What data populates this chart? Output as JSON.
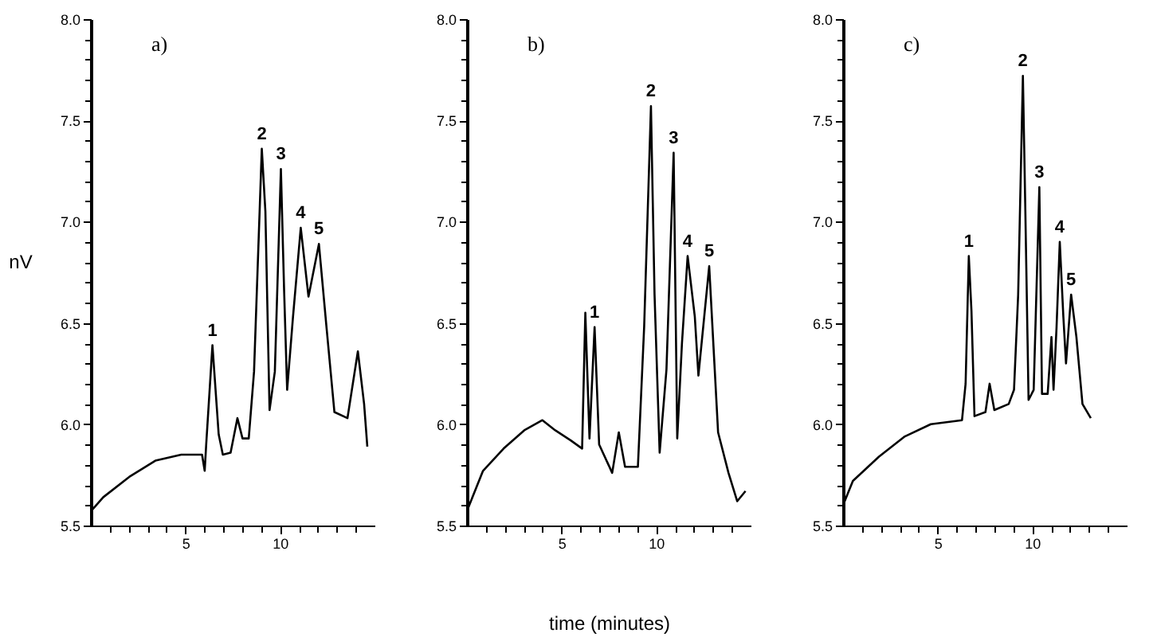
{
  "chart_data": [
    {
      "type": "line",
      "title": "a)",
      "ylabel": "nV",
      "x": [
        0,
        0.66,
        2.03,
        3.41,
        4.78,
        5.88,
        6.02,
        6.1,
        6.43,
        6.76,
        6.98,
        7.39,
        7.75,
        8.02,
        8.35,
        8.63,
        9.04,
        9.23,
        9.45,
        9.73,
        10.05,
        10.22,
        10.38,
        10.69,
        11.1,
        11.51,
        12.06,
        12.47,
        12.88,
        13.57,
        14.12,
        14.45,
        14.62
      ],
      "series": [
        {
          "color": "#000000",
          "values": [
            5.57,
            5.64,
            5.74,
            5.82,
            5.85,
            5.85,
            5.77,
            5.9,
            6.39,
            5.95,
            5.85,
            5.86,
            6.03,
            5.93,
            5.93,
            6.26,
            7.36,
            7.05,
            6.07,
            6.26,
            7.26,
            6.66,
            6.17,
            6.53,
            6.97,
            6.63,
            6.89,
            6.47,
            6.06,
            6.03,
            6.36,
            6.1,
            5.89
          ]
        }
      ],
      "annotations": [
        {
          "text": "1",
          "x": 6.43,
          "y": 6.39
        },
        {
          "text": "2",
          "x": 9.04,
          "y": 7.36
        },
        {
          "text": "3",
          "x": 10.05,
          "y": 7.26
        },
        {
          "text": "4",
          "x": 11.1,
          "y": 6.97
        },
        {
          "text": "5",
          "x": 12.06,
          "y": 6.89
        }
      ],
      "xlim": [
        0,
        15
      ],
      "ylim": [
        5.5,
        8.0
      ],
      "xticks": [
        {
          "value": 1,
          "label": null
        },
        {
          "value": 2,
          "label": null
        },
        {
          "value": 3,
          "label": null
        },
        {
          "value": 4,
          "label": null
        },
        5,
        {
          "value": 6,
          "label": null
        },
        {
          "value": 7,
          "label": null
        },
        {
          "value": 8,
          "label": null
        },
        {
          "value": 9,
          "label": null
        },
        10,
        {
          "value": 11,
          "label": null
        },
        {
          "value": 12,
          "label": null
        },
        {
          "value": 13,
          "label": null
        },
        {
          "value": 14,
          "label": null
        }
      ],
      "yticks": [
        {
          "value": 5.5,
          "label": "5.5"
        },
        {
          "value": 5.6,
          "label": null
        },
        {
          "value": 5.7,
          "label": null
        },
        {
          "value": 5.8,
          "label": null
        },
        {
          "value": 5.9,
          "label": null
        },
        {
          "value": 6.0,
          "label": "6.0"
        },
        {
          "value": 6.1,
          "label": null
        },
        {
          "value": 6.2,
          "label": null
        },
        {
          "value": 6.3,
          "label": null
        },
        {
          "value": 6.4,
          "label": null
        },
        {
          "value": 6.5,
          "label": "6.5"
        },
        {
          "value": 6.6,
          "label": null
        },
        {
          "value": 6.7,
          "label": null
        },
        {
          "value": 6.8,
          "label": null
        },
        {
          "value": 6.9,
          "label": null
        },
        {
          "value": 7.0,
          "label": "7.0"
        },
        {
          "value": 7.1,
          "label": null
        },
        {
          "value": 7.2,
          "label": null
        },
        {
          "value": 7.3,
          "label": null
        },
        {
          "value": 7.4,
          "label": null
        },
        {
          "value": 7.5,
          "label": "7.5"
        },
        {
          "value": 7.6,
          "label": null
        },
        {
          "value": 7.7,
          "label": null
        },
        {
          "value": 7.8,
          "label": null
        },
        {
          "value": 7.9,
          "label": null
        },
        {
          "value": 8.0,
          "label": "8.0"
        }
      ],
      "grid": false
    },
    {
      "type": "line",
      "title": "b)",
      "xlabel": "time (minutes)",
      "x": [
        0.08,
        0.85,
        1.94,
        3.03,
        3.99,
        4.67,
        5.49,
        6.09,
        6.26,
        6.48,
        6.75,
        6.99,
        7.68,
        8.03,
        8.36,
        9.04,
        9.37,
        9.73,
        9.92,
        10.19,
        10.55,
        10.93,
        11.12,
        11.37,
        11.67,
        12.05,
        12.24,
        12.81,
        13.28,
        13.83,
        14.29,
        14.73
      ],
      "series": [
        {
          "color": "#000000",
          "values": [
            5.59,
            5.77,
            5.88,
            5.97,
            6.02,
            5.97,
            5.92,
            5.88,
            6.55,
            5.93,
            6.48,
            5.9,
            5.76,
            5.96,
            5.79,
            5.79,
            6.48,
            7.57,
            6.64,
            5.86,
            6.27,
            7.34,
            5.93,
            6.4,
            6.83,
            6.53,
            6.24,
            6.78,
            5.96,
            5.76,
            5.62,
            5.67
          ]
        }
      ],
      "annotations": [
        {
          "text": "1",
          "x": 6.75,
          "y": 6.48
        },
        {
          "text": "2",
          "x": 9.73,
          "y": 7.57
        },
        {
          "text": "3",
          "x": 10.93,
          "y": 7.34
        },
        {
          "text": "4",
          "x": 11.67,
          "y": 6.83
        },
        {
          "text": "5",
          "x": 12.81,
          "y": 6.78
        }
      ],
      "xlim": [
        0,
        15
      ],
      "ylim": [
        5.5,
        8.0
      ],
      "xticks": [
        {
          "value": 1,
          "label": null
        },
        {
          "value": 2,
          "label": null
        },
        {
          "value": 3,
          "label": null
        },
        {
          "value": 4,
          "label": null
        },
        5,
        {
          "value": 6,
          "label": null
        },
        {
          "value": 7,
          "label": null
        },
        {
          "value": 8,
          "label": null
        },
        {
          "value": 9,
          "label": null
        },
        10,
        {
          "value": 11,
          "label": null
        },
        {
          "value": 12,
          "label": null
        },
        {
          "value": 13,
          "label": null
        },
        {
          "value": 14,
          "label": null
        }
      ],
      "yticks": [
        {
          "value": 5.5,
          "label": "5.5"
        },
        {
          "value": 5.6,
          "label": null
        },
        {
          "value": 5.7,
          "label": null
        },
        {
          "value": 5.8,
          "label": null
        },
        {
          "value": 5.9,
          "label": null
        },
        {
          "value": 6.0,
          "label": "6.0"
        },
        {
          "value": 6.1,
          "label": null
        },
        {
          "value": 6.2,
          "label": null
        },
        {
          "value": 6.3,
          "label": null
        },
        {
          "value": 6.4,
          "label": null
        },
        {
          "value": 6.5,
          "label": "6.5"
        },
        {
          "value": 6.6,
          "label": null
        },
        {
          "value": 6.7,
          "label": null
        },
        {
          "value": 6.8,
          "label": null
        },
        {
          "value": 6.9,
          "label": null
        },
        {
          "value": 7.0,
          "label": "7.0"
        },
        {
          "value": 7.1,
          "label": null
        },
        {
          "value": 7.2,
          "label": null
        },
        {
          "value": 7.3,
          "label": null
        },
        {
          "value": 7.4,
          "label": null
        },
        {
          "value": 7.5,
          "label": "7.5"
        },
        {
          "value": 7.6,
          "label": null
        },
        {
          "value": 7.7,
          "label": null
        },
        {
          "value": 7.8,
          "label": null
        },
        {
          "value": 7.9,
          "label": null
        },
        {
          "value": 8.0,
          "label": "8.0"
        }
      ],
      "grid": false
    },
    {
      "type": "line",
      "title": "c)",
      "x": [
        0.0,
        0.52,
        1.9,
        3.27,
        4.64,
        6.29,
        6.48,
        6.65,
        6.79,
        6.95,
        7.53,
        7.75,
        8.0,
        8.76,
        9.04,
        9.26,
        9.51,
        9.64,
        9.81,
        10.08,
        10.38,
        10.52,
        10.82,
        11.02,
        11.13,
        11.29,
        11.46,
        11.65,
        11.79,
        12.06,
        12.34,
        12.66,
        13.1
      ],
      "series": [
        {
          "color": "#000000",
          "values": [
            5.6,
            5.72,
            5.84,
            5.94,
            6.0,
            6.02,
            6.2,
            6.83,
            6.56,
            6.04,
            6.06,
            6.2,
            6.07,
            6.1,
            6.17,
            6.64,
            7.72,
            7.05,
            6.12,
            6.17,
            7.17,
            6.15,
            6.15,
            6.43,
            6.17,
            6.48,
            6.9,
            6.53,
            6.3,
            6.64,
            6.43,
            6.1,
            6.03
          ]
        }
      ],
      "annotations": [
        {
          "text": "1",
          "x": 6.65,
          "y": 6.83
        },
        {
          "text": "2",
          "x": 9.51,
          "y": 7.72
        },
        {
          "text": "3",
          "x": 10.38,
          "y": 7.17
        },
        {
          "text": "4",
          "x": 11.46,
          "y": 6.9
        },
        {
          "text": "5",
          "x": 12.06,
          "y": 6.64
        }
      ],
      "xlim": [
        0,
        15
      ],
      "ylim": [
        5.5,
        8.0
      ],
      "xticks": [
        {
          "value": 1,
          "label": null
        },
        {
          "value": 2,
          "label": null
        },
        {
          "value": 3,
          "label": null
        },
        {
          "value": 4,
          "label": null
        },
        5,
        {
          "value": 6,
          "label": null
        },
        {
          "value": 7,
          "label": null
        },
        {
          "value": 8,
          "label": null
        },
        {
          "value": 9,
          "label": null
        },
        10,
        {
          "value": 11,
          "label": null
        },
        {
          "value": 12,
          "label": null
        },
        {
          "value": 13,
          "label": null
        },
        {
          "value": 14,
          "label": null
        }
      ],
      "yticks": [
        {
          "value": 5.5,
          "label": "5.5"
        },
        {
          "value": 5.6,
          "label": null
        },
        {
          "value": 5.7,
          "label": null
        },
        {
          "value": 5.8,
          "label": null
        },
        {
          "value": 5.9,
          "label": null
        },
        {
          "value": 6.0,
          "label": "6.0"
        },
        {
          "value": 6.1,
          "label": null
        },
        {
          "value": 6.2,
          "label": null
        },
        {
          "value": 6.3,
          "label": null
        },
        {
          "value": 6.4,
          "label": null
        },
        {
          "value": 6.5,
          "label": "6.5"
        },
        {
          "value": 6.6,
          "label": null
        },
        {
          "value": 6.7,
          "label": null
        },
        {
          "value": 6.8,
          "label": null
        },
        {
          "value": 6.9,
          "label": null
        },
        {
          "value": 7.0,
          "label": "7.0"
        },
        {
          "value": 7.1,
          "label": null
        },
        {
          "value": 7.2,
          "label": null
        },
        {
          "value": 7.3,
          "label": null
        },
        {
          "value": 7.4,
          "label": null
        },
        {
          "value": 7.5,
          "label": "7.5"
        },
        {
          "value": 7.6,
          "label": null
        },
        {
          "value": 7.7,
          "label": null
        },
        {
          "value": 7.8,
          "label": null
        },
        {
          "value": 7.9,
          "label": null
        },
        {
          "value": 8.0,
          "label": "8.0"
        }
      ],
      "grid": false
    }
  ]
}
